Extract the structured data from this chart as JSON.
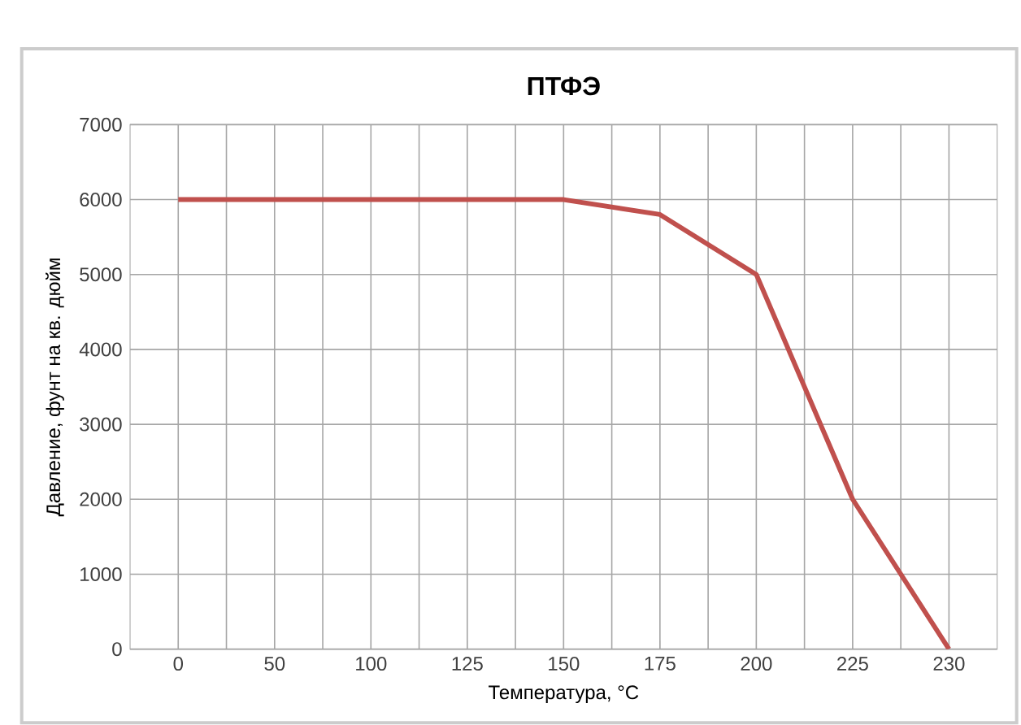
{
  "chart_data": {
    "type": "line",
    "title": "ПТФЭ",
    "xlabel": "Температура, °C",
    "ylabel": "Давление, фунт на кв. дюйм",
    "categories": [
      "0",
      "50",
      "100",
      "125",
      "150",
      "175",
      "200",
      "225",
      "230"
    ],
    "series": [
      {
        "color": "#c0504d",
        "values": [
          6000,
          6000,
          6000,
          6000,
          6000,
          5800,
          5000,
          2000,
          0
        ]
      }
    ],
    "ylim": [
      0,
      7000
    ],
    "yticks": [
      0,
      1000,
      2000,
      3000,
      4000,
      5000,
      6000,
      7000
    ],
    "grid": true,
    "marker": "none",
    "line_style": "solid"
  }
}
